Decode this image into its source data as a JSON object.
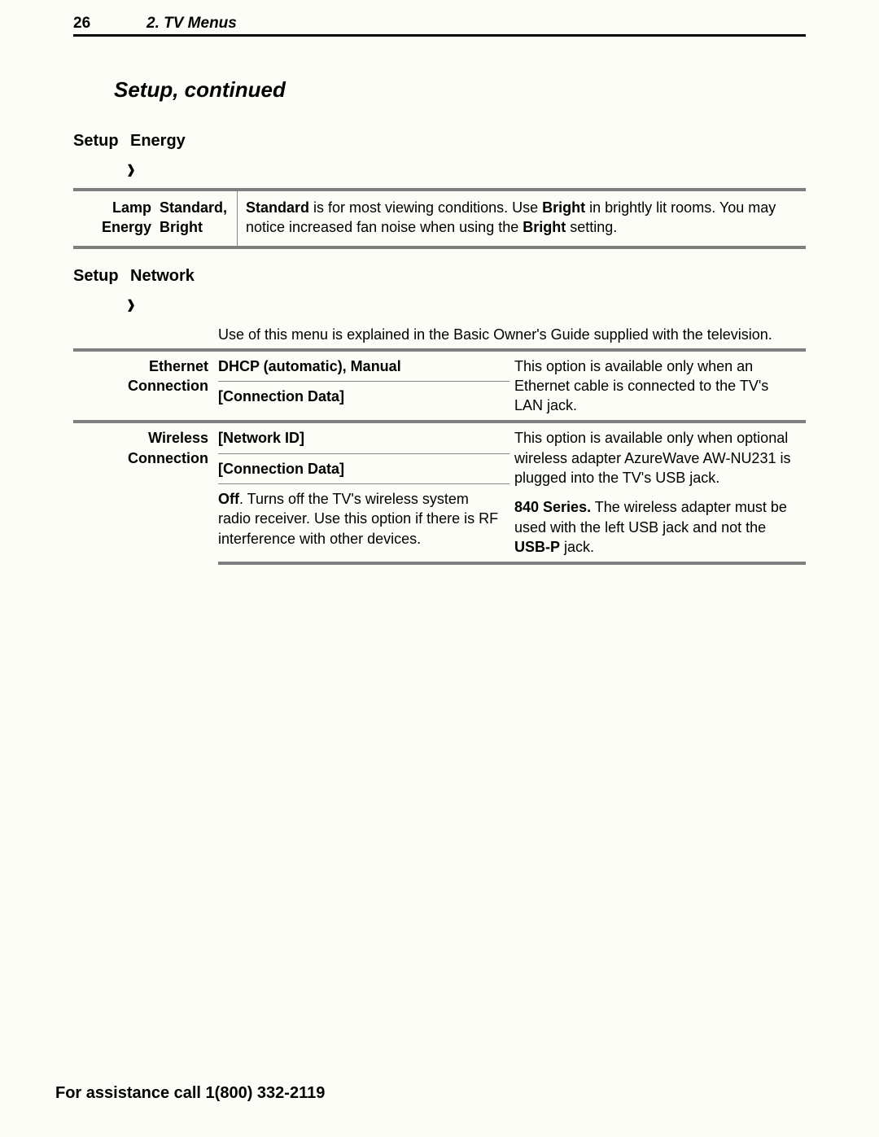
{
  "header": {
    "page_number": "26",
    "chapter": "2.  TV Menus"
  },
  "section_title": "Setup, continued",
  "energy": {
    "crumb1": "Setup",
    "crumb2": "Energy",
    "row_label_line1": "Lamp",
    "row_label_line2": "Energy",
    "row_opts_line1": "Standard,",
    "row_opts_line2": "Bright",
    "desc_leading_bold": "Standard",
    "desc_part1": " is for most viewing conditions.  Use ",
    "desc_bold2": "Bright",
    "desc_part2": " in brightly lit rooms.  You may notice increased fan noise when using the ",
    "desc_bold3": "Bright",
    "desc_part3": " setting."
  },
  "network": {
    "crumb1": "Setup",
    "crumb2": "Network",
    "intro": "Use of this menu is explained in the Basic Owner's Guide supplied with the television.",
    "eth_label": "Ethernet Connection",
    "eth_opt1": "DHCP (automatic), Manual",
    "eth_opt2": "[Connection Data]",
    "eth_note": "This option is available only when an Ethernet cable is connected to the TV's LAN jack.",
    "wifi_label": "Wireless Connection",
    "wifi_opt1": "[Network ID]",
    "wifi_opt2": "[Connection Data]",
    "wifi_off_bold": "Off",
    "wifi_off_rest": ".  Turns off the TV's wireless system radio receiver.  Use this option if there is RF interference with other devices.",
    "wifi_note1": "This option is available only when optional wireless adapter AzureWave AW-NU231 is plugged into the TV's USB jack.",
    "wifi_note2_bold": "840 Series.",
    "wifi_note2_mid": "  The wireless adapter must be used with the left USB jack and not the ",
    "wifi_note2_bold2": "USB-P",
    "wifi_note2_end": " jack."
  },
  "footer": "For assistance call 1(800) 332-2119"
}
